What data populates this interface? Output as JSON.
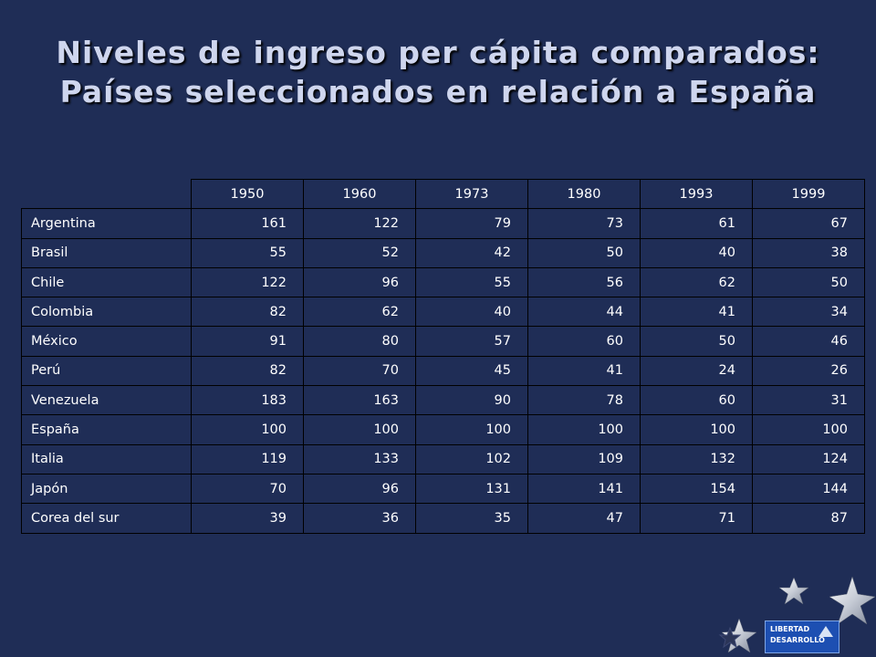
{
  "title": {
    "line1": "Niveles de ingreso per cápita comparados:",
    "line2": "Países seleccionados en relación a España"
  },
  "logo": {
    "line1": "LIBERTAD",
    "line2": "DESARROLLO",
    "icon": "triangle-logo-icon"
  },
  "colors": {
    "background": "#1f2d56",
    "title": "#cfd6ee",
    "text": "#ffffff",
    "gridline": "#000000"
  },
  "decorations": [
    "star-icon",
    "star-icon",
    "star-icon",
    "star-icon"
  ],
  "chart_data": {
    "type": "table",
    "columns": [
      "1950",
      "1960",
      "1973",
      "1980",
      "1993",
      "1999"
    ],
    "rows": [
      {
        "name": "Argentina",
        "values": [
          161,
          122,
          79,
          73,
          61,
          67
        ]
      },
      {
        "name": "Brasil",
        "values": [
          55,
          52,
          42,
          50,
          40,
          38
        ]
      },
      {
        "name": "Chile",
        "values": [
          122,
          96,
          55,
          56,
          62,
          50
        ]
      },
      {
        "name": "Colombia",
        "values": [
          82,
          62,
          40,
          44,
          41,
          34
        ]
      },
      {
        "name": "México",
        "values": [
          91,
          80,
          57,
          60,
          50,
          46
        ]
      },
      {
        "name": "Perú",
        "values": [
          82,
          70,
          45,
          41,
          24,
          26
        ]
      },
      {
        "name": "Venezuela",
        "values": [
          183,
          163,
          90,
          78,
          60,
          31
        ]
      },
      {
        "name": "España",
        "values": [
          100,
          100,
          100,
          100,
          100,
          100
        ]
      },
      {
        "name": "Italia",
        "values": [
          119,
          133,
          102,
          109,
          132,
          124
        ]
      },
      {
        "name": "Japón",
        "values": [
          70,
          96,
          131,
          141,
          154,
          144
        ]
      },
      {
        "name": "Corea del sur",
        "values": [
          39,
          36,
          35,
          47,
          71,
          87
        ]
      }
    ]
  }
}
